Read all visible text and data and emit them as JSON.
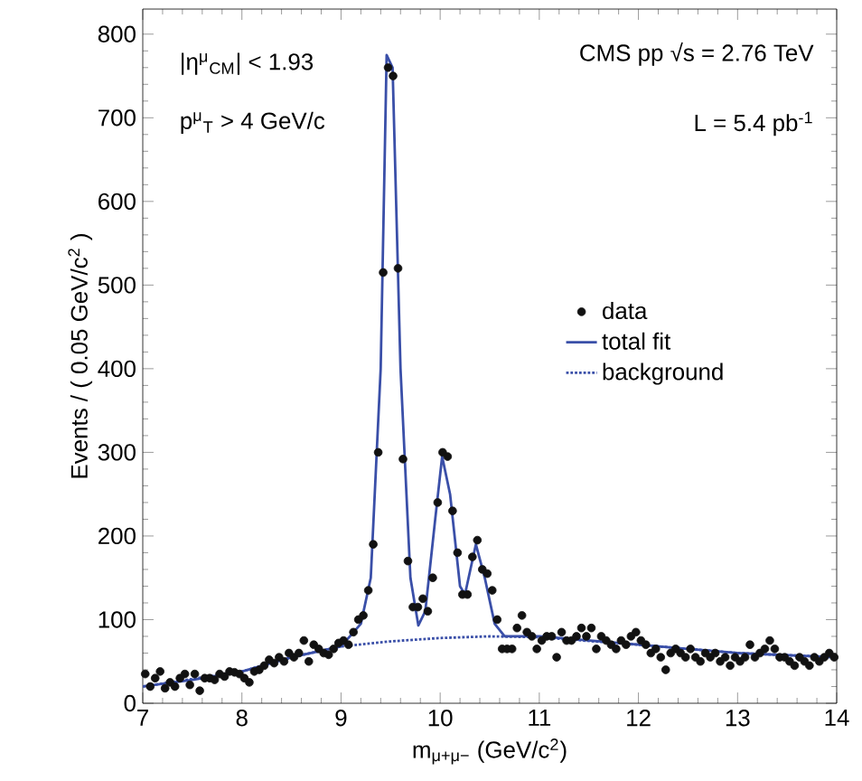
{
  "chart_data": {
    "type": "scatter",
    "xlabel": "m$_{μ+μ−}$ (GeV/c$^{2}$)",
    "ylabel": "Events / ( 0.05 GeV/c$^{2}$ )",
    "annotations": [
      "CMS pp √s = 2.76 TeV",
      "L = 5.4 pb$^{-1}$",
      "|η$^{μ}$$_{CM}$| < 1.93",
      "p$^{μ}$$_{T}$ > 4 GeV/c"
    ],
    "xlim": [
      7,
      14
    ],
    "ylim": [
      0,
      830
    ],
    "xticks": [
      7,
      8,
      9,
      10,
      11,
      12,
      13,
      14
    ],
    "yticks": [
      0,
      100,
      200,
      300,
      400,
      500,
      600,
      700,
      800
    ],
    "legend": "right",
    "series": [
      {
        "name": "data",
        "color": "#111111",
        "marker": "circle",
        "x": [
          7.025,
          7.075,
          7.125,
          7.175,
          7.225,
          7.275,
          7.325,
          7.375,
          7.425,
          7.475,
          7.525,
          7.575,
          7.625,
          7.675,
          7.725,
          7.775,
          7.825,
          7.875,
          7.925,
          7.975,
          8.025,
          8.075,
          8.125,
          8.175,
          8.225,
          8.275,
          8.325,
          8.375,
          8.425,
          8.475,
          8.525,
          8.575,
          8.625,
          8.675,
          8.725,
          8.775,
          8.825,
          8.875,
          8.925,
          8.975,
          9.025,
          9.075,
          9.125,
          9.175,
          9.225,
          9.275,
          9.325,
          9.375,
          9.425,
          9.475,
          9.525,
          9.575,
          9.625,
          9.675,
          9.725,
          9.775,
          9.825,
          9.875,
          9.925,
          9.975,
          10.025,
          10.075,
          10.125,
          10.175,
          10.225,
          10.275,
          10.325,
          10.375,
          10.425,
          10.475,
          10.525,
          10.575,
          10.625,
          10.675,
          10.725,
          10.775,
          10.825,
          10.875,
          10.925,
          10.975,
          11.025,
          11.075,
          11.125,
          11.175,
          11.225,
          11.275,
          11.325,
          11.375,
          11.425,
          11.475,
          11.525,
          11.575,
          11.625,
          11.675,
          11.725,
          11.775,
          11.825,
          11.875,
          11.925,
          11.975,
          12.025,
          12.075,
          12.125,
          12.175,
          12.225,
          12.275,
          12.325,
          12.375,
          12.425,
          12.475,
          12.525,
          12.575,
          12.625,
          12.675,
          12.725,
          12.775,
          12.825,
          12.875,
          12.925,
          12.975,
          13.025,
          13.075,
          13.125,
          13.175,
          13.225,
          13.275,
          13.325,
          13.375,
          13.425,
          13.475,
          13.525,
          13.575,
          13.625,
          13.675,
          13.725,
          13.775,
          13.825,
          13.875,
          13.925,
          13.975
        ],
        "values": [
          35,
          20,
          30,
          38,
          18,
          25,
          20,
          30,
          35,
          22,
          35,
          15,
          30,
          30,
          28,
          35,
          32,
          38,
          37,
          35,
          30,
          25,
          38,
          40,
          45,
          52,
          48,
          55,
          50,
          60,
          55,
          60,
          75,
          50,
          70,
          65,
          60,
          58,
          65,
          72,
          75,
          70,
          85,
          100,
          105,
          135,
          190,
          300,
          515,
          760,
          750,
          520,
          292,
          170,
          115,
          115,
          125,
          110,
          150,
          240,
          300,
          295,
          230,
          180,
          130,
          130,
          175,
          195,
          160,
          155,
          135,
          100,
          65,
          65,
          65,
          90,
          105,
          85,
          80,
          65,
          75,
          80,
          80,
          55,
          85,
          75,
          75,
          80,
          90,
          80,
          90,
          65,
          80,
          75,
          70,
          65,
          75,
          70,
          80,
          85,
          75,
          70,
          60,
          65,
          55,
          40,
          60,
          65,
          60,
          55,
          65,
          55,
          50,
          60,
          55,
          60,
          50,
          55,
          45,
          55,
          50,
          55,
          70,
          55,
          60,
          65,
          75,
          65,
          55,
          55,
          50,
          45,
          55,
          50,
          45,
          55,
          50,
          55,
          60,
          55
        ]
      },
      {
        "name": "total fit",
        "type": "line",
        "color": "#3a4fa8",
        "line_style": "solid",
        "x": [
          7,
          7.5,
          8,
          8.5,
          9,
          9.2,
          9.3,
          9.4,
          9.46,
          9.52,
          9.6,
          9.7,
          9.78,
          9.85,
          9.95,
          10.02,
          10.1,
          10.2,
          10.25,
          10.36,
          10.45,
          10.55,
          10.65,
          11,
          12,
          13,
          14
        ],
        "values": [
          20,
          28,
          38,
          55,
          68,
          95,
          150,
          400,
          775,
          760,
          400,
          150,
          93,
          110,
          220,
          295,
          250,
          140,
          130,
          190,
          150,
          95,
          80,
          80,
          70,
          60,
          55
        ]
      },
      {
        "name": "background",
        "type": "line",
        "color": "#3a4fa8",
        "line_style": "dotted",
        "x": [
          7,
          8,
          8.5,
          9,
          9.5,
          10,
          10.5,
          11,
          12,
          13,
          14
        ],
        "values": [
          20,
          38,
          55,
          68,
          74,
          78,
          80,
          79,
          70,
          60,
          55
        ]
      }
    ]
  }
}
